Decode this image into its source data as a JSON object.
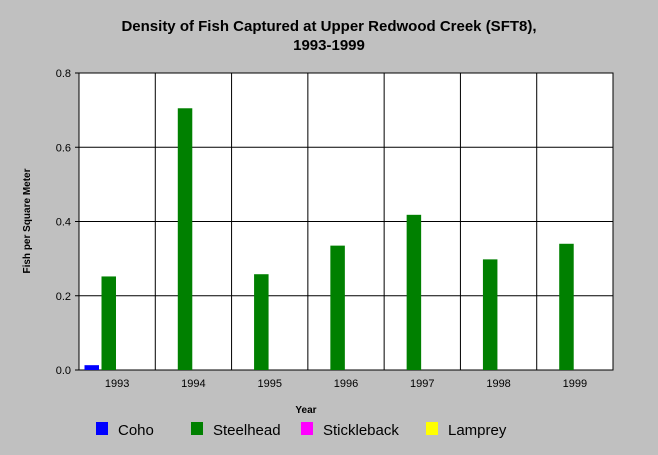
{
  "chart_data": {
    "type": "bar",
    "title_lines": [
      "Density of Fish Captured at Upper Redwood Creek (SFT8),",
      "1993-1999"
    ],
    "xlabel": "Year",
    "ylabel": "Fish per Square Meter",
    "categories": [
      "1993",
      "1994",
      "1995",
      "1996",
      "1997",
      "1998",
      "1999"
    ],
    "ylim": [
      0,
      0.8
    ],
    "yticks": [
      "0.0",
      "0.2",
      "0.4",
      "0.6",
      "0.8"
    ],
    "grid": "vertical category dividers and horizontal value lines",
    "legend_position": "bottom",
    "series": [
      {
        "name": "Coho",
        "color": "#0000ff",
        "values": [
          0.013,
          0,
          0,
          0,
          0,
          0,
          0
        ]
      },
      {
        "name": "Steelhead",
        "color": "#008000",
        "values": [
          0.252,
          0.705,
          0.258,
          0.335,
          0.418,
          0.298,
          0.34
        ]
      },
      {
        "name": "Stickleback",
        "color": "#ff00ff",
        "values": [
          0,
          0,
          0,
          0,
          0,
          0,
          0
        ]
      },
      {
        "name": "Lamprey",
        "color": "#ffff00",
        "values": [
          0,
          0,
          0,
          0,
          0,
          0,
          0
        ]
      }
    ]
  }
}
